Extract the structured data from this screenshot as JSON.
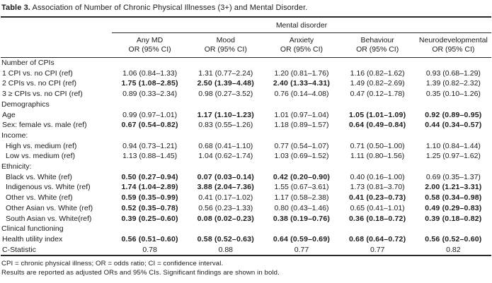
{
  "title": {
    "label": "Table 3.",
    "text": "Association of Number of Chronic Physical Illnesses (3+) and Mental Disorder."
  },
  "table": {
    "spanner": "Mental disorder",
    "columns": [
      {
        "name": "Any MD",
        "sub": "OR (95% CI)"
      },
      {
        "name": "Mood",
        "sub": "OR (95% CI)"
      },
      {
        "name": "Anxiety",
        "sub": "OR (95% CI)"
      },
      {
        "name": "Behaviour",
        "sub": "OR (95% CI)"
      },
      {
        "name": "Neurodevelopmental",
        "sub": "OR (95% CI)"
      }
    ],
    "rows": [
      {
        "type": "section",
        "label": "Number of CPIs"
      },
      {
        "type": "data",
        "label": "1 CPI vs. no CPI (ref)",
        "indent": false,
        "cells": [
          {
            "t": "1.06 (0.84–1.33)",
            "b": false
          },
          {
            "t": "1.31 (0.77–2.24)",
            "b": false
          },
          {
            "t": "1.20 (0.81–1.76)",
            "b": false
          },
          {
            "t": "1.16 (0.82–1.62)",
            "b": false
          },
          {
            "t": "0.93 (0.68–1.29)",
            "b": false
          }
        ]
      },
      {
        "type": "data",
        "label": "2 CPIs vs. no CPI (ref)",
        "indent": false,
        "cells": [
          {
            "t": "1.75 (1.08–2.85)",
            "b": true
          },
          {
            "t": "2.50 (1.39–4.48)",
            "b": true
          },
          {
            "t": "2.40 (1.33–4.31)",
            "b": true
          },
          {
            "t": "1.49 (0.82–2.69)",
            "b": false
          },
          {
            "t": "1.39 (0.82–2.32)",
            "b": false
          }
        ]
      },
      {
        "type": "data",
        "label": "3 ≥ CPIs vs. no CPI (ref)",
        "indent": false,
        "cells": [
          {
            "t": "0.89 (0.33–2.34)",
            "b": false
          },
          {
            "t": "0.98 (0.27–3.52)",
            "b": false
          },
          {
            "t": "0.76 (0.14–4.08)",
            "b": false
          },
          {
            "t": "0.47 (0.12–1.78)",
            "b": false
          },
          {
            "t": "0.35 (0.10–1.26)",
            "b": false
          }
        ]
      },
      {
        "type": "section",
        "label": "Demographics"
      },
      {
        "type": "data",
        "label": "Age",
        "indent": false,
        "cells": [
          {
            "t": "0.99 (0.97–1.01)",
            "b": false
          },
          {
            "t": "1.17 (1.10–1.23)",
            "b": true
          },
          {
            "t": "1.01 (0.97–1.04)",
            "b": false
          },
          {
            "t": "1.05 (1.01–1.09)",
            "b": true
          },
          {
            "t": "0.92 (0.89–0.95)",
            "b": true
          }
        ]
      },
      {
        "type": "data",
        "label": "Sex: female vs. male (ref)",
        "indent": false,
        "cells": [
          {
            "t": "0.67 (0.54–0.82)",
            "b": true
          },
          {
            "t": "0.83 (0.55–1.26)",
            "b": false
          },
          {
            "t": "1.18 (0.89–1.57)",
            "b": false
          },
          {
            "t": "0.64 (0.49–0.84)",
            "b": true
          },
          {
            "t": "0.44 (0.34–0.57)",
            "b": true
          }
        ]
      },
      {
        "type": "section",
        "label": "Income:"
      },
      {
        "type": "data",
        "label": "High vs. medium (ref)",
        "indent": true,
        "cells": [
          {
            "t": "0.94 (0.73–1.21)",
            "b": false
          },
          {
            "t": "0.68 (0.41–1.10)",
            "b": false
          },
          {
            "t": "0.77 (0.54–1.07)",
            "b": false
          },
          {
            "t": "0.71 (0.50–1.00)",
            "b": false
          },
          {
            "t": "1.10 (0.84–1.44)",
            "b": false
          }
        ]
      },
      {
        "type": "data",
        "label": "Low vs. medium (ref)",
        "indent": true,
        "cells": [
          {
            "t": "1.13 (0.88–1.45)",
            "b": false
          },
          {
            "t": "1.04 (0.62–1.74)",
            "b": false
          },
          {
            "t": "1.03 (0.69–1.52)",
            "b": false
          },
          {
            "t": "1.11 (0.80–1.56)",
            "b": false
          },
          {
            "t": "1.25 (0.97–1.62)",
            "b": false
          }
        ]
      },
      {
        "type": "section",
        "label": "Ethnicity:"
      },
      {
        "type": "data",
        "label": "Black vs. White (ref)",
        "indent": true,
        "cells": [
          {
            "t": "0.50 (0.27–0.94)",
            "b": true
          },
          {
            "t": "0.07 (0.03–0.14)",
            "b": true
          },
          {
            "t": "0.42 (0.20–0.90)",
            "b": true
          },
          {
            "t": "0.40 (0.16–1.00)",
            "b": false
          },
          {
            "t": "0.69 (0.35–1.37)",
            "b": false
          }
        ]
      },
      {
        "type": "data",
        "label": "Indigenous vs. White (ref)",
        "indent": true,
        "cells": [
          {
            "t": "1.74 (1.04–2.89)",
            "b": true
          },
          {
            "t": "3.88 (2.04–7.36)",
            "b": true
          },
          {
            "t": "1.55 (0.67–3.61)",
            "b": false
          },
          {
            "t": "1.73 (0.81–3.70)",
            "b": false
          },
          {
            "t": "2.00 (1.21–3.31)",
            "b": true
          }
        ]
      },
      {
        "type": "data",
        "label": "Other vs. White (ref)",
        "indent": true,
        "cells": [
          {
            "t": "0.59 (0.35–0.99)",
            "b": true
          },
          {
            "t": "0.41 (0.17–1.02)",
            "b": false
          },
          {
            "t": "1.17 (0.58–2.38)",
            "b": false
          },
          {
            "t": "0.41 (0.23–0.73)",
            "b": true
          },
          {
            "t": "0.58 (0.34–0.98)",
            "b": true
          }
        ]
      },
      {
        "type": "data",
        "label": "Other Asian vs. White (ref)",
        "indent": true,
        "cells": [
          {
            "t": "0.52 (0.35–0.78)",
            "b": true
          },
          {
            "t": "0.56 (0.23–1.33)",
            "b": false
          },
          {
            "t": "0.80 (0.43–1.46)",
            "b": false
          },
          {
            "t": "0.65 (0.41–1.01)",
            "b": false
          },
          {
            "t": "0.49 (0.29–0.83)",
            "b": true
          }
        ]
      },
      {
        "type": "data",
        "label": "South Asian vs. White(ref)",
        "indent": true,
        "cells": [
          {
            "t": "0.39 (0.25–0.60)",
            "b": true
          },
          {
            "t": "0.08 (0.02–0.23)",
            "b": true
          },
          {
            "t": "0.38 (0.19–0.76)",
            "b": true
          },
          {
            "t": "0.36 (0.18–0.72)",
            "b": true
          },
          {
            "t": "0.39 (0.18–0.82)",
            "b": true
          }
        ]
      },
      {
        "type": "section",
        "label": "Clinical functioning"
      },
      {
        "type": "data",
        "label": "Health utility index",
        "indent": false,
        "cells": [
          {
            "t": "0.56 (0.51–0.60)",
            "b": true
          },
          {
            "t": "0.58 (0.52–0.63)",
            "b": true
          },
          {
            "t": "0.64 (0.59–0.69)",
            "b": true
          },
          {
            "t": "0.68 (0.64–0.72)",
            "b": true
          },
          {
            "t": "0.56 (0.52–0.60)",
            "b": true
          }
        ]
      },
      {
        "type": "data",
        "label": "C-Statistic",
        "indent": false,
        "cells": [
          {
            "t": "0.78",
            "b": false
          },
          {
            "t": "0.88",
            "b": false
          },
          {
            "t": "0.77",
            "b": false
          },
          {
            "t": "0.77",
            "b": false
          },
          {
            "t": "0.82",
            "b": false
          }
        ]
      }
    ]
  },
  "footnotes": [
    "CPI = chronic physical illness; OR = odds ratio; CI = confidence interval.",
    "Results are reported as adjusted ORs and 95% CIs. Significant findings are shown in bold."
  ]
}
